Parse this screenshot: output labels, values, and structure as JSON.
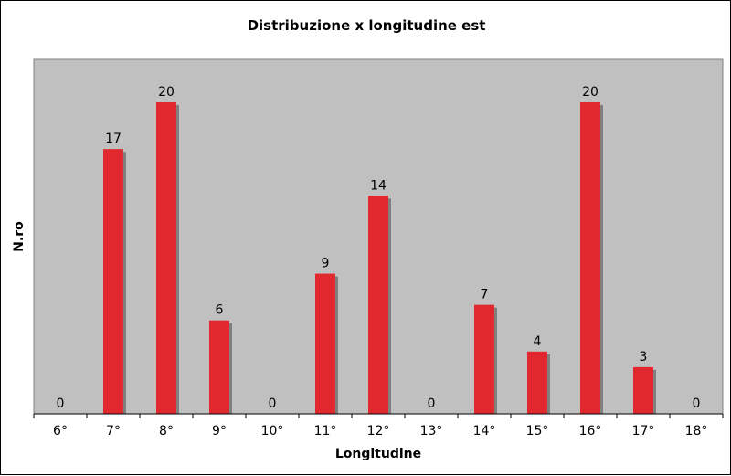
{
  "chart_data": {
    "type": "bar",
    "title": "Distribuzione x longitudine est",
    "xlabel": "Longitudine",
    "ylabel": "N.ro",
    "categories": [
      "6°",
      "7°",
      "8°",
      "9°",
      "10°",
      "11°",
      "12°",
      "13°",
      "14°",
      "15°",
      "16°",
      "17°",
      "18°"
    ],
    "values": [
      0,
      17,
      20,
      6,
      0,
      9,
      14,
      0,
      7,
      4,
      20,
      3,
      0
    ],
    "ylim": [
      0,
      20
    ],
    "grid": false,
    "legend": "none",
    "colors": {
      "bar": "#e0282e",
      "bar_shadow": "#808080",
      "plot_background": "#c0c0c0",
      "page_background": "#ffffff"
    }
  }
}
